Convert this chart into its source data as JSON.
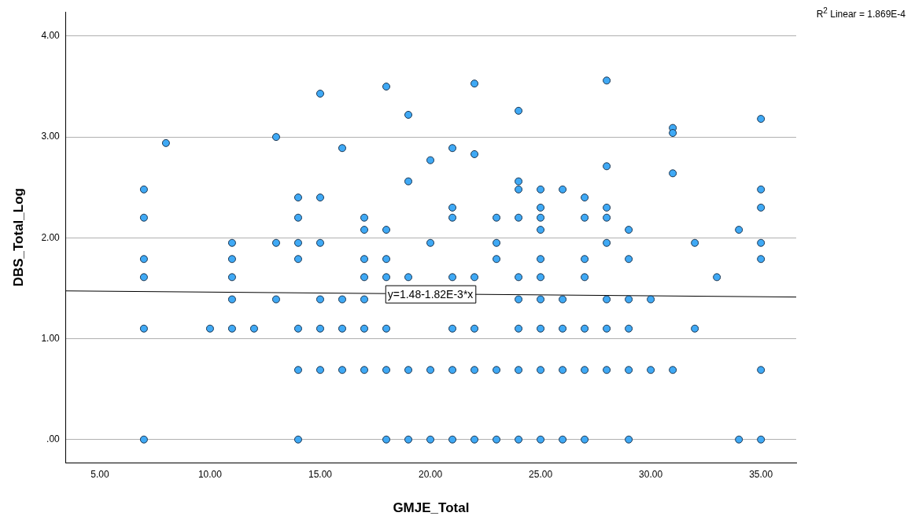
{
  "chart_data": {
    "type": "scatter",
    "xlabel": "GMJE_Total",
    "ylabel": "DBS_Total_Log",
    "xlim": [
      3.46,
      36.6
    ],
    "ylim": [
      -0.23,
      4.24
    ],
    "xticks": [
      {
        "value": 5,
        "label": "5.00"
      },
      {
        "value": 10,
        "label": "10.00"
      },
      {
        "value": 15,
        "label": "15.00"
      },
      {
        "value": 20,
        "label": "20.00"
      },
      {
        "value": 25,
        "label": "25.00"
      },
      {
        "value": 30,
        "label": "30.00"
      },
      {
        "value": 35,
        "label": "35.00"
      }
    ],
    "yticks": [
      {
        "value": 0,
        "label": ".00"
      },
      {
        "value": 1,
        "label": "1.00"
      },
      {
        "value": 2,
        "label": "2.00"
      },
      {
        "value": 3,
        "label": "3.00"
      },
      {
        "value": 4,
        "label": "4.00"
      }
    ],
    "grid": "y",
    "legend": false,
    "series": [
      {
        "color": "#3fa9f5",
        "marker": "circle",
        "x": [
          7,
          7,
          7,
          7,
          7,
          7,
          8,
          10,
          11,
          11,
          11,
          11,
          11,
          12,
          13,
          13,
          13,
          14,
          14,
          14,
          14,
          14,
          14,
          14,
          15,
          15,
          15,
          15,
          15,
          15,
          16,
          16,
          16,
          16,
          17,
          17,
          17,
          17,
          17,
          17,
          17,
          18,
          18,
          18,
          18,
          18,
          18,
          18,
          19,
          19,
          19,
          19,
          19,
          20,
          20,
          20,
          20,
          21,
          21,
          21,
          21,
          21,
          21,
          21,
          22,
          22,
          22,
          22,
          22,
          22,
          23,
          23,
          23,
          23,
          23,
          24,
          24,
          24,
          24,
          24,
          24,
          24,
          24,
          24,
          25,
          25,
          25,
          25,
          25,
          25,
          25,
          25,
          25,
          25,
          26,
          26,
          26,
          26,
          26,
          27,
          27,
          27,
          27,
          27,
          27,
          27,
          28,
          28,
          28,
          28,
          28,
          28,
          28,
          28,
          29,
          29,
          29,
          29,
          29,
          29,
          30,
          30,
          31,
          31,
          31,
          31,
          32,
          32,
          33,
          34,
          34,
          35,
          35,
          35,
          35,
          35,
          35,
          35
        ],
        "values": [
          2.48,
          2.2,
          1.79,
          1.61,
          1.1,
          0,
          2.94,
          1.1,
          1.95,
          1.79,
          1.61,
          1.39,
          1.1,
          1.1,
          3.0,
          1.95,
          1.39,
          2.4,
          2.2,
          1.95,
          1.79,
          1.1,
          0.69,
          0,
          3.43,
          2.4,
          1.95,
          1.39,
          1.1,
          0.69,
          2.89,
          1.39,
          1.1,
          0.69,
          2.2,
          2.08,
          1.79,
          1.61,
          1.39,
          1.1,
          0.69,
          3.5,
          2.08,
          1.79,
          1.61,
          1.1,
          0.69,
          0,
          3.22,
          2.56,
          1.61,
          0.69,
          0,
          2.77,
          1.95,
          0.69,
          0,
          2.89,
          2.3,
          2.2,
          1.61,
          1.1,
          0.69,
          0,
          3.53,
          2.83,
          1.61,
          1.1,
          0.69,
          0,
          2.2,
          1.95,
          1.79,
          0.69,
          0,
          3.26,
          2.56,
          2.48,
          2.2,
          1.61,
          1.39,
          1.1,
          0.69,
          0,
          2.48,
          2.3,
          2.2,
          2.08,
          1.79,
          1.61,
          1.39,
          1.1,
          0.69,
          0,
          2.48,
          1.39,
          1.1,
          0.69,
          0,
          2.4,
          2.2,
          1.79,
          1.61,
          1.1,
          0.69,
          0,
          3.56,
          2.71,
          2.3,
          2.2,
          1.95,
          1.39,
          1.1,
          0.69,
          2.08,
          1.79,
          1.39,
          1.1,
          0.69,
          0,
          1.39,
          0.69,
          3.09,
          3.04,
          2.64,
          0.69,
          1.95,
          1.1,
          1.61,
          2.08,
          0,
          3.18,
          2.48,
          2.3,
          1.95,
          1.79,
          0.69,
          0
        ]
      },
      {
        "type": "line",
        "color": "#000000",
        "marker": "none",
        "line_style": "solid",
        "x": [
          3.46,
          36.6
        ],
        "values": [
          1.474,
          1.413
        ]
      }
    ],
    "annotations": [
      "R$^{2}$ Linear = 1.869E-4",
      {
        "text": "y=1.48-1.82E-3*x",
        "x": 20,
        "y": 1.4436
      }
    ]
  }
}
